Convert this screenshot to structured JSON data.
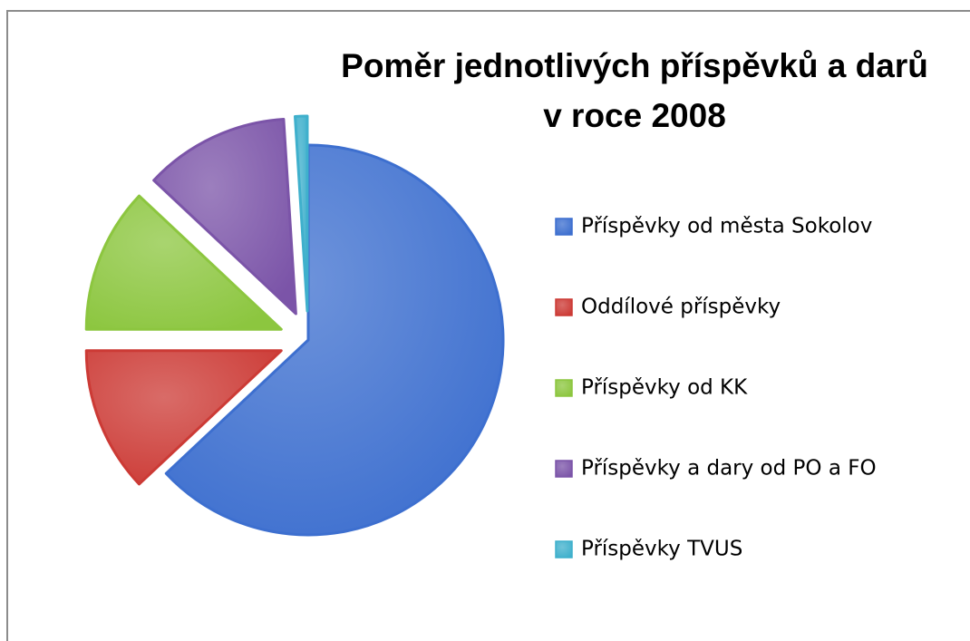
{
  "chart_data": {
    "type": "pie",
    "title": "Poměr jednotlivých příspěvků a darů v roce 2008",
    "categories": [
      "Příspěvky od města Sokolov",
      "Oddílové příspěvky",
      "Příspěvky od KK",
      "Příspěvky a dary od PO a FO",
      "Příspěvky TVUS"
    ],
    "values": [
      63,
      12,
      12,
      12,
      1
    ],
    "colors": [
      "#3d6fcf",
      "#cc3a35",
      "#8cc63f",
      "#7b54a8",
      "#3fb0cc"
    ],
    "legend": "right"
  }
}
